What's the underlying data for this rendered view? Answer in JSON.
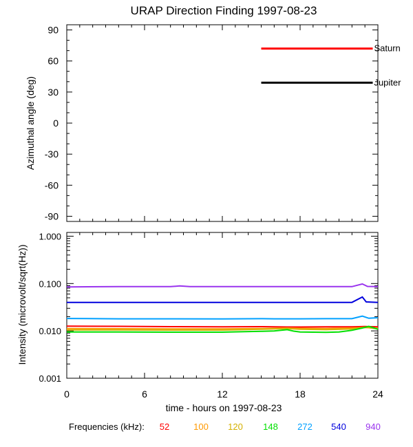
{
  "chart_data": [
    {
      "type": "line",
      "title": "URAP Direction Finding  1997-08-23",
      "ylabel": "Azimuthal angle (deg)",
      "xlim": [
        0,
        24
      ],
      "ylim": [
        -95,
        95
      ],
      "yticks": [
        90,
        60,
        30,
        0,
        -30,
        -60,
        -90
      ],
      "yticklabels": [
        "90",
        "60",
        "30",
        "0",
        "-30",
        "-60",
        "-90"
      ],
      "series": [
        {
          "name": "Saturn",
          "color": "#ff0000",
          "x": [
            15.0,
            23.6
          ],
          "y": [
            72,
            72
          ]
        },
        {
          "name": "Jupiter",
          "color": "#000000",
          "x": [
            15.0,
            23.6
          ],
          "y": [
            39,
            39
          ]
        }
      ]
    },
    {
      "type": "scatter",
      "ylabel": "Intensity (microvolt/sqrt(Hz))",
      "xlabel": "time - hours on 1997-08-23",
      "yscale": "log",
      "xlim": [
        0,
        24
      ],
      "ylim": [
        0.001,
        1.2
      ],
      "xticks": [
        0,
        6,
        12,
        18,
        24
      ],
      "xticklabels": [
        "0",
        "6",
        "12",
        "18",
        "24"
      ],
      "yticks": [
        1.0,
        0.1,
        0.01,
        0.001
      ],
      "yticklabels": [
        "1.000",
        "0.100",
        "0.010",
        "0.001"
      ],
      "legend_label": "Frequencies (kHz):",
      "series": [
        {
          "name": "52",
          "color": "#ff0000",
          "x": [
            0,
            4,
            8,
            12,
            15,
            16,
            17,
            18,
            20,
            22,
            23,
            24
          ],
          "y": [
            0.0126,
            0.0125,
            0.0123,
            0.0122,
            0.0123,
            0.0122,
            0.0121,
            0.0121,
            0.0122,
            0.0122,
            0.0124,
            0.0122
          ]
        },
        {
          "name": "100",
          "color": "#ff9900",
          "x": [
            0,
            4,
            8,
            12,
            15,
            16,
            17,
            18,
            20,
            22,
            23,
            24
          ],
          "y": [
            0.0112,
            0.0111,
            0.011,
            0.011,
            0.0112,
            0.0113,
            0.0115,
            0.0113,
            0.0112,
            0.0115,
            0.0118,
            0.0114
          ]
        },
        {
          "name": "120",
          "color": "#d4b000",
          "x": [
            0,
            4,
            8,
            12,
            15,
            16,
            17,
            18,
            20,
            22,
            23,
            24
          ],
          "y": [
            0.0105,
            0.0105,
            0.0104,
            0.0104,
            0.0108,
            0.011,
            0.0112,
            0.0108,
            0.0106,
            0.011,
            0.012,
            0.011
          ]
        },
        {
          "name": "148",
          "color": "#00e000",
          "x": [
            0,
            4,
            8,
            12,
            15,
            16,
            17,
            17.5,
            18,
            19,
            20,
            21,
            22,
            22.8,
            23.3,
            24
          ],
          "y": [
            0.0095,
            0.0095,
            0.0094,
            0.0094,
            0.0098,
            0.01,
            0.0106,
            0.0099,
            0.0095,
            0.0094,
            0.0093,
            0.0095,
            0.0103,
            0.0115,
            0.0125,
            0.0108
          ]
        },
        {
          "name": "272",
          "color": "#00a0ff",
          "x": [
            0,
            4,
            8,
            12,
            15,
            16,
            17,
            18,
            20,
            22,
            22.8,
            23.3,
            24
          ],
          "y": [
            0.0183,
            0.018,
            0.018,
            0.0179,
            0.0181,
            0.018,
            0.018,
            0.018,
            0.0181,
            0.0181,
            0.0205,
            0.0185,
            0.019
          ]
        },
        {
          "name": "540",
          "color": "#0000dd",
          "x": [
            0,
            4,
            8,
            12,
            15,
            16,
            18,
            20,
            22,
            22.8,
            23.1,
            24
          ],
          "y": [
            0.04,
            0.04,
            0.04,
            0.04,
            0.04,
            0.04,
            0.04,
            0.04,
            0.04,
            0.052,
            0.041,
            0.04
          ]
        },
        {
          "name": "940",
          "color": "#9933ee",
          "x": [
            0,
            4,
            8,
            8.7,
            9.5,
            12,
            15,
            18,
            20,
            22,
            22.8,
            23.2,
            24
          ],
          "y": [
            0.085,
            0.086,
            0.086,
            0.089,
            0.086,
            0.086,
            0.086,
            0.086,
            0.086,
            0.086,
            0.098,
            0.087,
            0.086
          ]
        }
      ]
    }
  ]
}
